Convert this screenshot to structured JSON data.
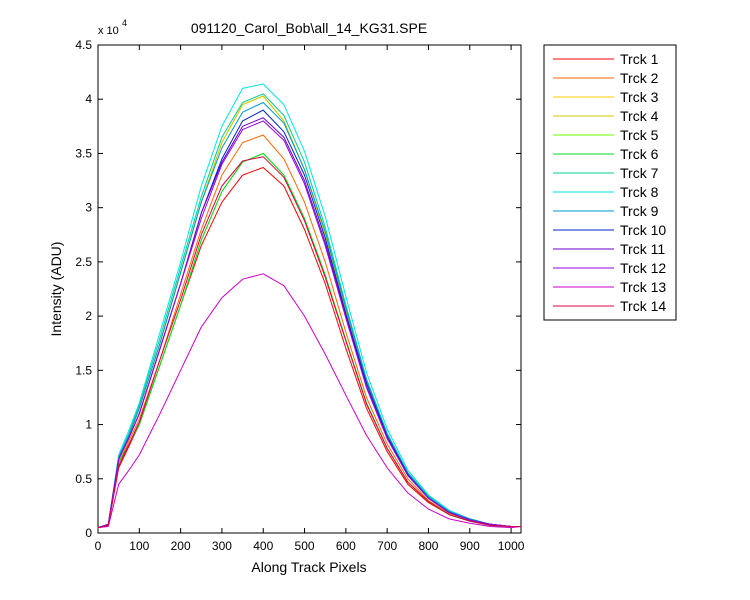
{
  "chart_data": {
    "type": "line",
    "title": "091120_Carol_Bob\\all_14_KG31.SPE",
    "xlabel": "Along Track Pixels",
    "ylabel": "Intensity (ADU)",
    "y_multiplier_label": "x 10",
    "y_multiplier_exponent": "4",
    "xlim": [
      0,
      1024
    ],
    "ylim": [
      0,
      4.5
    ],
    "xticks": [
      0,
      100,
      200,
      300,
      400,
      500,
      600,
      700,
      800,
      900,
      1000
    ],
    "yticks": [
      0,
      0.5,
      1,
      1.5,
      2,
      2.5,
      3,
      3.5,
      4,
      4.5
    ],
    "ytick_labels": [
      "0",
      "0.5",
      "1",
      "1.5",
      "2",
      "2.5",
      "3",
      "3.5",
      "4",
      "4.5"
    ],
    "grid": false,
    "legend_position": "outside-right",
    "x": [
      0,
      25,
      50,
      75,
      100,
      150,
      200,
      250,
      300,
      350,
      400,
      450,
      500,
      550,
      600,
      650,
      700,
      750,
      800,
      850,
      900,
      950,
      1000,
      1024
    ],
    "series": [
      {
        "name": "Trck 1",
        "color": "#ff0000",
        "values": [
          0.05,
          0.07,
          0.6,
          0.8,
          1.0,
          1.55,
          2.1,
          2.65,
          3.05,
          3.3,
          3.37,
          3.2,
          2.8,
          2.3,
          1.7,
          1.15,
          0.75,
          0.45,
          0.28,
          0.17,
          0.11,
          0.07,
          0.06,
          0.06
        ]
      },
      {
        "name": "Trck 2",
        "color": "#ff6600",
        "values": [
          0.05,
          0.07,
          0.65,
          0.85,
          1.05,
          1.6,
          2.2,
          2.8,
          3.3,
          3.6,
          3.67,
          3.45,
          3.05,
          2.5,
          1.85,
          1.25,
          0.82,
          0.5,
          0.3,
          0.18,
          0.12,
          0.08,
          0.06,
          0.06
        ]
      },
      {
        "name": "Trck 3",
        "color": "#ffcc00",
        "values": [
          0.05,
          0.08,
          0.7,
          0.9,
          1.15,
          1.75,
          2.4,
          3.05,
          3.6,
          3.95,
          4.03,
          3.8,
          3.35,
          2.75,
          2.05,
          1.4,
          0.9,
          0.55,
          0.33,
          0.2,
          0.13,
          0.08,
          0.06,
          0.06
        ]
      },
      {
        "name": "Trck 4",
        "color": "#cccc00",
        "values": [
          0.05,
          0.08,
          0.7,
          0.9,
          1.15,
          1.75,
          2.4,
          3.05,
          3.6,
          3.95,
          4.03,
          3.8,
          3.35,
          2.75,
          2.05,
          1.4,
          0.9,
          0.55,
          0.33,
          0.2,
          0.13,
          0.08,
          0.06,
          0.06
        ]
      },
      {
        "name": "Trck 5",
        "color": "#66ff00",
        "values": [
          0.05,
          0.07,
          0.65,
          0.82,
          1.0,
          1.55,
          2.1,
          2.7,
          3.15,
          3.42,
          3.5,
          3.3,
          2.9,
          2.38,
          1.78,
          1.2,
          0.78,
          0.47,
          0.29,
          0.17,
          0.11,
          0.07,
          0.06,
          0.06
        ]
      },
      {
        "name": "Trck 6",
        "color": "#00dd22",
        "values": [
          0.05,
          0.07,
          0.65,
          0.82,
          1.0,
          1.55,
          2.1,
          2.7,
          3.15,
          3.42,
          3.5,
          3.3,
          2.9,
          2.38,
          1.78,
          1.2,
          0.78,
          0.47,
          0.29,
          0.17,
          0.11,
          0.07,
          0.06,
          0.06
        ]
      },
      {
        "name": "Trck 7",
        "color": "#00cc99",
        "values": [
          0.05,
          0.08,
          0.7,
          0.92,
          1.18,
          1.8,
          2.45,
          3.1,
          3.65,
          3.97,
          4.05,
          3.85,
          3.42,
          2.82,
          2.1,
          1.42,
          0.92,
          0.56,
          0.34,
          0.2,
          0.13,
          0.08,
          0.06,
          0.06
        ]
      },
      {
        "name": "Trck 8",
        "color": "#00e5e5",
        "values": [
          0.05,
          0.08,
          0.72,
          0.95,
          1.2,
          1.85,
          2.5,
          3.2,
          3.75,
          4.1,
          4.14,
          3.95,
          3.52,
          2.92,
          2.18,
          1.48,
          0.96,
          0.58,
          0.35,
          0.21,
          0.13,
          0.08,
          0.06,
          0.06
        ]
      },
      {
        "name": "Trck 9",
        "color": "#0099cc",
        "values": [
          0.05,
          0.08,
          0.7,
          0.9,
          1.15,
          1.75,
          2.4,
          3.05,
          3.55,
          3.88,
          3.97,
          3.78,
          3.35,
          2.78,
          2.07,
          1.41,
          0.91,
          0.55,
          0.33,
          0.2,
          0.13,
          0.08,
          0.06,
          0.06
        ]
      },
      {
        "name": "Trck 10",
        "color": "#0022cc",
        "values": [
          0.05,
          0.08,
          0.68,
          0.88,
          1.1,
          1.7,
          2.3,
          2.95,
          3.45,
          3.8,
          3.9,
          3.7,
          3.3,
          2.72,
          2.02,
          1.38,
          0.89,
          0.54,
          0.32,
          0.19,
          0.12,
          0.08,
          0.06,
          0.06
        ]
      },
      {
        "name": "Trck 11",
        "color": "#6600cc",
        "values": [
          0.05,
          0.08,
          0.68,
          0.88,
          1.1,
          1.7,
          2.3,
          2.95,
          3.42,
          3.75,
          3.83,
          3.65,
          3.25,
          2.68,
          2.0,
          1.35,
          0.88,
          0.53,
          0.32,
          0.19,
          0.12,
          0.08,
          0.06,
          0.06
        ]
      },
      {
        "name": "Trck 12",
        "color": "#9900dd",
        "values": [
          0.05,
          0.08,
          0.68,
          0.88,
          1.1,
          1.7,
          2.3,
          2.9,
          3.4,
          3.72,
          3.8,
          3.62,
          3.22,
          2.65,
          1.98,
          1.34,
          0.87,
          0.53,
          0.32,
          0.19,
          0.12,
          0.08,
          0.06,
          0.06
        ]
      },
      {
        "name": "Trck 13",
        "color": "#cc00cc",
        "values": [
          0.05,
          0.06,
          0.45,
          0.58,
          0.72,
          1.1,
          1.5,
          1.9,
          2.17,
          2.34,
          2.39,
          2.28,
          2.0,
          1.65,
          1.27,
          0.9,
          0.6,
          0.37,
          0.22,
          0.13,
          0.09,
          0.06,
          0.05,
          0.06
        ]
      },
      {
        "name": "Trck 14",
        "color": "#dd0044",
        "values": [
          0.05,
          0.07,
          0.62,
          0.82,
          1.02,
          1.6,
          2.15,
          2.75,
          3.2,
          3.43,
          3.47,
          3.28,
          2.88,
          2.36,
          1.77,
          1.19,
          0.78,
          0.47,
          0.29,
          0.17,
          0.11,
          0.07,
          0.06,
          0.06
        ]
      }
    ]
  }
}
